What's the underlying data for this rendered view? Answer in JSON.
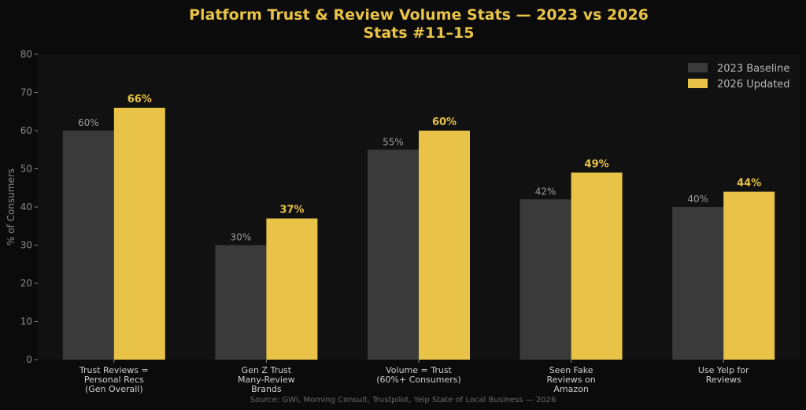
{
  "chart_data": {
    "type": "bar",
    "title": "Platform Trust & Review Volume Stats — 2023 vs 2026",
    "subtitle": "Stats #11–15",
    "ylabel": "% of Consumers",
    "xlabel": "",
    "ylim": [
      0,
      80
    ],
    "yticks": [
      "0",
      "10",
      "20",
      "30",
      "40",
      "50",
      "60",
      "70",
      "80"
    ],
    "categories": [
      [
        "Trust Reviews =",
        "Personal Recs",
        "(Gen Overall)"
      ],
      [
        "Gen Z Trust",
        "Many-Review",
        "Brands"
      ],
      [
        "Volume = Trust",
        "(60%+ Consumers)"
      ],
      [
        "Seen Fake",
        "Reviews on",
        "Amazon"
      ],
      [
        "Use Yelp for",
        "Reviews"
      ]
    ],
    "series": [
      {
        "name": "2023 Baseline",
        "values": [
          60,
          30,
          55,
          42,
          40
        ],
        "labels": [
          "60%",
          "30%",
          "55%",
          "42%",
          "40%"
        ],
        "color": "#3a3a3a"
      },
      {
        "name": "2026 Updated",
        "values": [
          66,
          37,
          60,
          49,
          44
        ],
        "labels": [
          "66%",
          "37%",
          "60%",
          "49%",
          "44%"
        ],
        "color": "#e8c347"
      }
    ],
    "legend": "top-right",
    "grid": false,
    "source": "Source: GWI, Morning Consult, Trustpilot, Yelp State of Local Business — 2026"
  },
  "colors": {
    "background": "#0b0b0b",
    "plot_background": "#111111",
    "title": "#e8c347",
    "axis_text": "#8a8a8a",
    "category_text": "#d0d0d0",
    "baseline_label": "#9a9a9a",
    "updated_label": "#e8c347",
    "source_text": "#6a6a6a"
  }
}
